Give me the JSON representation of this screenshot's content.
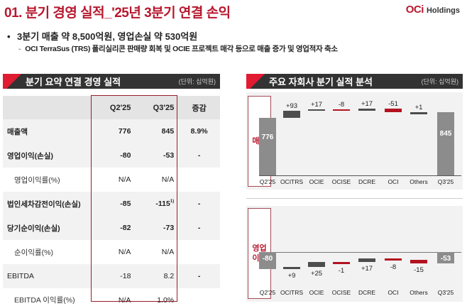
{
  "header": {
    "title": "01. 분기 경영 실적_'25년 3분기 연결 손익",
    "brand_mark": "OCi",
    "brand_name": "Holdings"
  },
  "summary": {
    "bullet_main": "3분기 매출 약 8,500억원, 영업손실 약 530억원",
    "bullet_sub": "OCI TerraSus (TRS) 폴리실리콘 판매량 회복 및 OCIE 프로젝트 매각 등으로 매출 증가 및 영업적자 축소",
    "bullet_symbol": "•",
    "sub_symbol": "-"
  },
  "left_section": {
    "title": "분기 요약 연결 경영 실적",
    "unit": "(단위: 십억원)",
    "columns": [
      "",
      "Q2'25",
      "Q3'25",
      "증감"
    ],
    "rows": [
      {
        "label": "매출액",
        "q2": "776",
        "q3": "845",
        "change": "8.9%",
        "sub": false
      },
      {
        "label": "영업이익(손실)",
        "q2": "-80",
        "q3": "-53",
        "change": "-",
        "sub": false
      },
      {
        "label": "영업이익률(%)",
        "q2": "N/A",
        "q3": "N/A",
        "change": "",
        "sub": true
      },
      {
        "label": "법인세차감전이익(손실)",
        "q2": "-85",
        "q3": "-115",
        "q3_note": "1)",
        "change": "-",
        "sub": false
      },
      {
        "label": "당기순이익(손실)",
        "q2": "-82",
        "q3": "-73",
        "change": "-",
        "sub": false
      },
      {
        "label": "순이익률(%)",
        "q2": "N/A",
        "q3": "N/A",
        "change": "",
        "sub": true
      },
      {
        "label": "EBITDA",
        "q2": "-18",
        "q3": "8.2",
        "change": "-",
        "sub": false
      },
      {
        "label": "EBITDA 이익률(%)",
        "q2": "N/A",
        "q3": "1.0%",
        "change": "",
        "sub": true
      }
    ]
  },
  "right_section": {
    "title": "주요 자회사 분기 실적 분석",
    "unit": "(단위: 십억원)",
    "revenue_label": "매출",
    "op_label": "영업\n이익",
    "colors": {
      "total": "#8c8c8c",
      "positive": "#4d4d4d",
      "negative": "#b3121f"
    }
  },
  "chart_data": [
    {
      "type": "bar",
      "subtype": "waterfall",
      "title": "매출",
      "categories": [
        "Q2'25",
        "OCITRS",
        "OCIE",
        "OCISE",
        "DCRE",
        "OCI",
        "Others",
        "Q3'25"
      ],
      "values": [
        776,
        93,
        17,
        -8,
        17,
        -51,
        1,
        845
      ],
      "labels": [
        "776",
        "+93",
        "+17",
        "-8",
        "+17",
        "-51",
        "+1",
        "845"
      ],
      "unit": "십억원"
    },
    {
      "type": "bar",
      "subtype": "waterfall",
      "title": "영업이익",
      "categories": [
        "Q2'25",
        "OCITRS",
        "OCIE",
        "OCISE",
        "DCRE",
        "OCI",
        "Others",
        "Q3'25"
      ],
      "values": [
        -80,
        9,
        25,
        -1,
        17,
        -8,
        -15,
        -53
      ],
      "labels": [
        "-80",
        "+9",
        "+25",
        "-1",
        "+17",
        "-8",
        "-15",
        "-53"
      ],
      "unit": "십억원"
    }
  ]
}
